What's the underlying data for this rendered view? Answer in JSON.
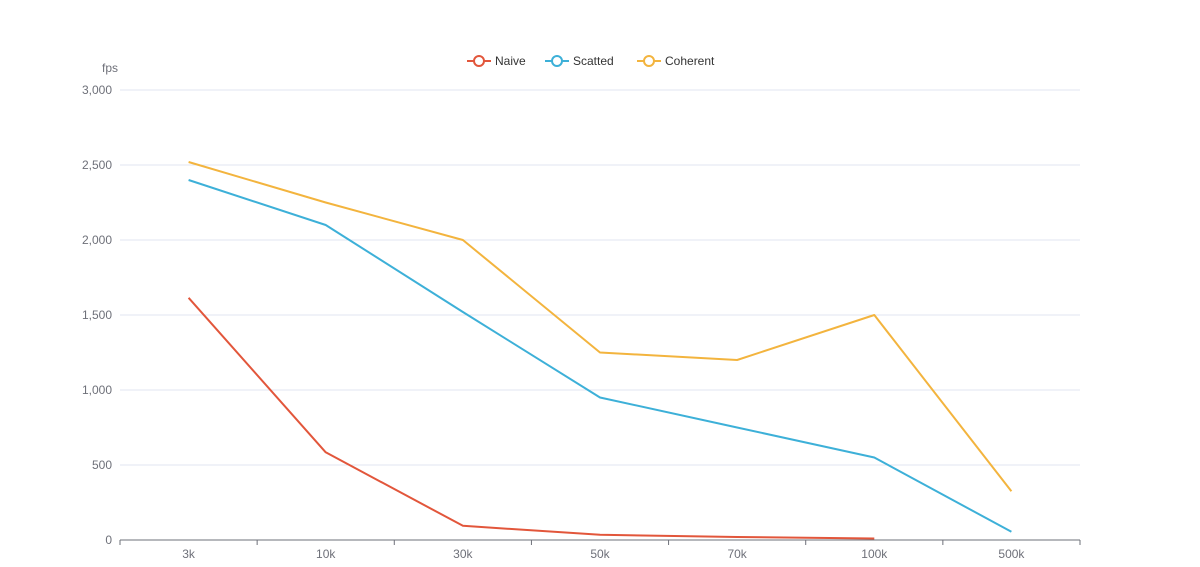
{
  "chart_data": {
    "type": "line",
    "categories": [
      "3k",
      "10k",
      "30k",
      "50k",
      "70k",
      "100k",
      "500k"
    ],
    "ylabel": "fps",
    "ylim": [
      0,
      3000
    ],
    "yticks": [
      "0",
      "500",
      "1,000",
      "1,500",
      "2,000",
      "2,500",
      "3,000"
    ],
    "ytick_values": [
      0,
      500,
      1000,
      1500,
      2000,
      2500,
      3000
    ],
    "grid": "horizontal",
    "legend_position": "top-center",
    "series": [
      {
        "name": "Naive",
        "color": "#e2563b",
        "values": [
          1615,
          585,
          95,
          35,
          20,
          10,
          null
        ]
      },
      {
        "name": "Scatted",
        "color": "#3db0d8",
        "values": [
          2400,
          2100,
          1520,
          950,
          750,
          550,
          55
        ]
      },
      {
        "name": "Coherent",
        "color": "#f3b43e",
        "values": [
          2520,
          2250,
          2000,
          1250,
          1200,
          1500,
          325
        ]
      }
    ]
  }
}
